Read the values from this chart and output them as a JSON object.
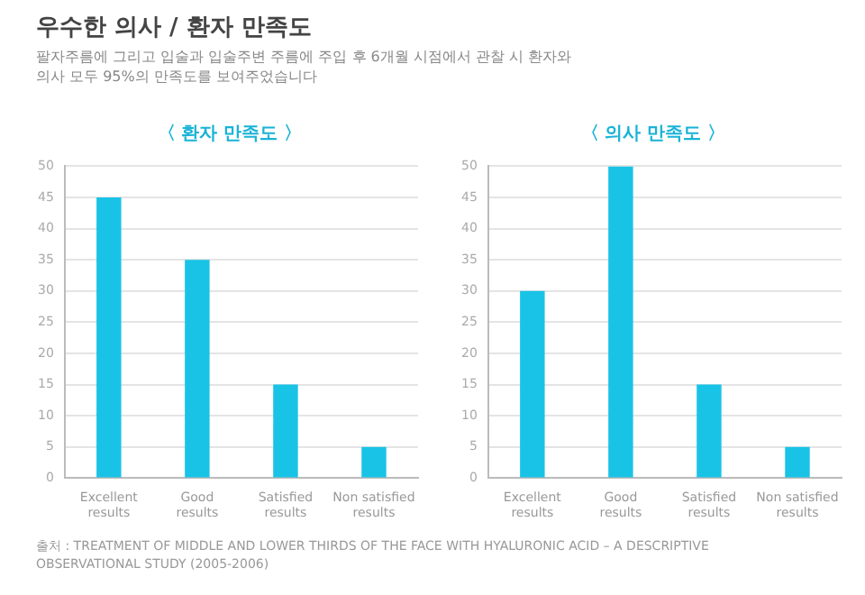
{
  "chart_data": [
    {
      "type": "bar",
      "title": "〈 환자 만족도 〉",
      "categories": [
        "Excellent results",
        "Good results",
        "Satisfied results",
        "Non satisfied results"
      ],
      "values": [
        45,
        35,
        15,
        5
      ],
      "color": "#19c3e6",
      "ylim": [
        0,
        50
      ],
      "yticks": [
        0,
        5,
        10,
        15,
        20,
        25,
        30,
        35,
        40,
        45,
        50
      ],
      "grid": "y",
      "legend": false,
      "annotations": [
        "우수한 의사 / 환자 만족도",
        "팔자주름에 그리고 입술과 입술주변 주름에 주입 후 6개월 시점에서 관찰 시  환자와 의사 모두 95%의 만족도를 보여주었습니다"
      ]
    },
    {
      "type": "bar",
      "title": "〈 의사 만족도 〉",
      "categories": [
        "Excellent results",
        "Good results",
        "Satisfied results",
        "Non satisfied results"
      ],
      "values": [
        30,
        50,
        15,
        5
      ],
      "color": "#19c3e6",
      "ylim": [
        0,
        50
      ],
      "yticks": [
        0,
        5,
        10,
        15,
        20,
        25,
        30,
        35,
        40,
        45,
        50
      ],
      "grid": "y",
      "legend": false,
      "annotations": [
        "출처 : TREATMENT OF MIDDLE AND LOWER THIRDS OF THE FACE WITH HYALURONIC ACID – A DESCRIPTIVE OBSERVATIONAL STUDY (2005-2006)"
      ]
    }
  ]
}
